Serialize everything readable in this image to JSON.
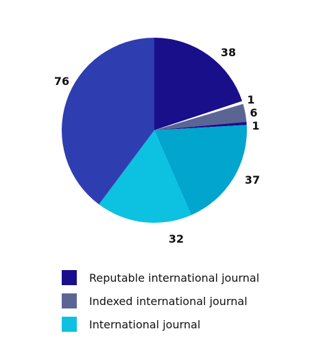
{
  "chart_data": {
    "type": "pie",
    "title": "",
    "slices": [
      {
        "value": 38,
        "label": "38",
        "color": "#1a0f8a"
      },
      {
        "value": 1,
        "label": "1",
        "color": "#ffffff"
      },
      {
        "value": 6,
        "label": "6",
        "color": "#5a6594"
      },
      {
        "value": 1,
        "label": "1",
        "color": "#1a0f8a"
      },
      {
        "value": 37,
        "label": "37",
        "color": "#02a5cd"
      },
      {
        "value": 32,
        "label": "32",
        "color": "#0dc1e1"
      },
      {
        "value": 76,
        "label": "76",
        "color": "#2e3eb0"
      }
    ],
    "legend": [
      {
        "label": "Reputable international journal",
        "color": "#1a0f8a"
      },
      {
        "label": "Indexed international journal",
        "color": "#5a6594"
      },
      {
        "label": "International journal",
        "color": "#0dc1e1"
      }
    ],
    "legend_position": "bottom-left"
  }
}
